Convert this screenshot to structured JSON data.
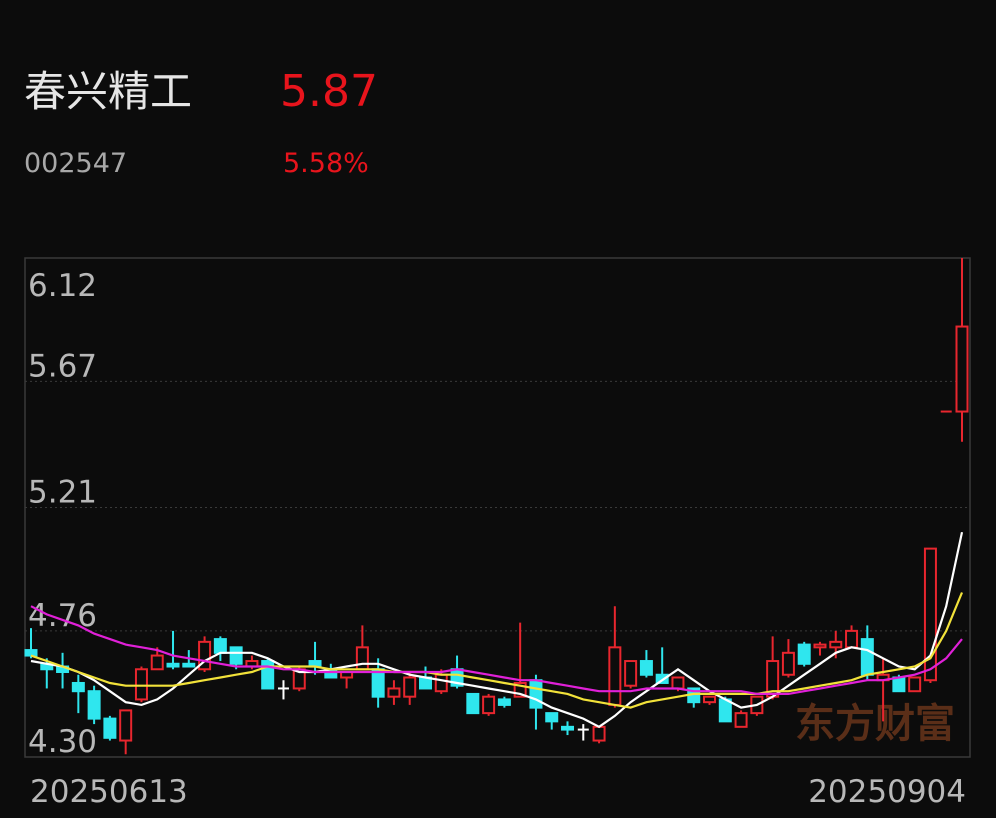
{
  "header": {
    "name": "春兴精工",
    "price": "5.87",
    "code": "002547",
    "change": "5.58%"
  },
  "watermark": "东方财富",
  "chart_data": {
    "type": "candlestick",
    "categories": [
      "20250613",
      null,
      null,
      null,
      null,
      null,
      null,
      null,
      null,
      null,
      null,
      null,
      null,
      null,
      null,
      null,
      null,
      null,
      null,
      null,
      null,
      null,
      null,
      null,
      null,
      null,
      null,
      null,
      null,
      null,
      null,
      null,
      null,
      null,
      null,
      null,
      null,
      null,
      null,
      null,
      null,
      null,
      null,
      null,
      null,
      null,
      null,
      null,
      null,
      null,
      null,
      null,
      null,
      null,
      null,
      null,
      null,
      null,
      null,
      "20250904"
    ],
    "open": [
      4.69,
      4.64,
      4.63,
      4.57,
      4.54,
      4.44,
      4.36,
      4.51,
      4.62,
      4.64,
      4.64,
      4.62,
      4.73,
      4.7,
      4.63,
      4.65,
      4.55,
      4.55,
      4.65,
      4.62,
      4.59,
      4.62,
      4.62,
      4.52,
      4.52,
      4.59,
      4.54,
      4.62,
      4.53,
      4.46,
      4.51,
      4.52,
      4.58,
      4.46,
      4.41,
      4.4,
      4.36,
      4.49,
      4.56,
      4.65,
      4.6,
      4.55,
      4.55,
      4.5,
      4.51,
      4.41,
      4.46,
      4.52,
      4.6,
      4.71,
      4.7,
      4.7,
      4.7,
      4.73,
      4.58,
      4.59,
      4.54,
      4.58,
      5.56,
      5.56
    ],
    "high": [
      4.77,
      4.66,
      4.68,
      4.6,
      4.56,
      4.45,
      4.47,
      4.63,
      4.7,
      4.76,
      4.69,
      4.74,
      4.74,
      4.7,
      4.67,
      4.66,
      4.58,
      4.63,
      4.72,
      4.64,
      4.61,
      4.78,
      4.66,
      4.58,
      4.61,
      4.63,
      4.62,
      4.67,
      4.53,
      4.53,
      4.52,
      4.79,
      4.6,
      4.46,
      4.43,
      4.42,
      4.41,
      4.85,
      4.65,
      4.69,
      4.7,
      4.59,
      4.55,
      4.52,
      4.52,
      4.47,
      4.52,
      4.74,
      4.73,
      4.72,
      4.72,
      4.76,
      4.78,
      4.78,
      4.66,
      4.6,
      4.59,
      5.06,
      5.56,
      6.12
    ],
    "low": [
      4.66,
      4.55,
      4.55,
      4.46,
      4.42,
      4.36,
      4.31,
      4.5,
      4.62,
      4.62,
      4.63,
      4.61,
      4.65,
      4.62,
      4.62,
      4.55,
      4.51,
      4.54,
      4.6,
      4.59,
      4.55,
      4.62,
      4.48,
      4.49,
      4.49,
      4.55,
      4.53,
      4.55,
      4.46,
      4.45,
      4.48,
      4.52,
      4.4,
      4.4,
      4.38,
      4.36,
      4.35,
      4.48,
      4.55,
      4.59,
      4.57,
      4.54,
      4.48,
      4.49,
      4.43,
      4.41,
      4.45,
      4.51,
      4.59,
      4.63,
      4.67,
      4.66,
      4.7,
      4.58,
      4.43,
      4.54,
      4.54,
      4.57,
      5.56,
      5.45
    ],
    "close": [
      4.67,
      4.62,
      4.61,
      4.54,
      4.44,
      4.37,
      4.47,
      4.62,
      4.67,
      4.63,
      4.63,
      4.72,
      4.68,
      4.64,
      4.65,
      4.55,
      4.55,
      4.62,
      4.63,
      4.59,
      4.61,
      4.7,
      4.52,
      4.55,
      4.59,
      4.55,
      4.6,
      4.56,
      4.46,
      4.52,
      4.49,
      4.57,
      4.48,
      4.43,
      4.4,
      4.4,
      4.41,
      4.7,
      4.65,
      4.6,
      4.57,
      4.59,
      4.5,
      4.52,
      4.43,
      4.46,
      4.52,
      4.65,
      4.68,
      4.64,
      4.71,
      4.72,
      4.76,
      4.6,
      4.6,
      4.54,
      4.59,
      5.06,
      5.56,
      5.87
    ],
    "up_color": "#e8262e",
    "down_color": "#2fe6ee",
    "flat_color": "#ffffff",
    "lines": [
      {
        "color": "#ffffff",
        "values": [
          4.65,
          4.64,
          4.63,
          4.61,
          4.58,
          4.54,
          4.5,
          4.49,
          4.51,
          4.55,
          4.6,
          4.65,
          4.68,
          4.68,
          4.68,
          4.66,
          4.63,
          4.61,
          4.61,
          4.62,
          4.63,
          4.64,
          4.64,
          4.62,
          4.6,
          4.59,
          4.58,
          4.57,
          4.56,
          4.55,
          4.54,
          4.53,
          4.51,
          4.48,
          4.46,
          4.44,
          4.41,
          4.45,
          4.5,
          4.54,
          4.58,
          4.62,
          4.58,
          4.54,
          4.51,
          4.48,
          4.49,
          4.52,
          4.56,
          4.6,
          4.64,
          4.68,
          4.7,
          4.69,
          4.66,
          4.63,
          4.62,
          4.67,
          4.85,
          5.12
        ]
      },
      {
        "color": "#f2e23a",
        "values": [
          4.67,
          4.65,
          4.63,
          4.61,
          4.59,
          4.57,
          4.56,
          4.56,
          4.56,
          4.56,
          4.57,
          4.58,
          4.59,
          4.6,
          4.61,
          4.63,
          4.63,
          4.63,
          4.63,
          4.62,
          4.62,
          4.62,
          4.62,
          4.61,
          4.61,
          4.61,
          4.6,
          4.6,
          4.59,
          4.58,
          4.57,
          4.56,
          4.55,
          4.54,
          4.53,
          4.51,
          4.5,
          4.49,
          4.48,
          4.5,
          4.51,
          4.52,
          4.53,
          4.53,
          4.53,
          4.53,
          4.53,
          4.54,
          4.54,
          4.55,
          4.56,
          4.57,
          4.58,
          4.6,
          4.61,
          4.62,
          4.63,
          4.66,
          4.76,
          4.9
        ]
      },
      {
        "color": "#e020d8",
        "values": [
          4.85,
          4.82,
          4.8,
          4.78,
          4.75,
          4.73,
          4.71,
          4.7,
          4.69,
          4.67,
          4.66,
          4.65,
          4.64,
          4.63,
          4.63,
          4.63,
          4.62,
          4.62,
          4.61,
          4.61,
          4.61,
          4.61,
          4.61,
          4.61,
          4.61,
          4.61,
          4.61,
          4.62,
          4.61,
          4.6,
          4.59,
          4.58,
          4.58,
          4.57,
          4.56,
          4.55,
          4.54,
          4.54,
          4.54,
          4.55,
          4.55,
          4.55,
          4.54,
          4.54,
          4.54,
          4.54,
          4.53,
          4.53,
          4.53,
          4.54,
          4.55,
          4.56,
          4.57,
          4.58,
          4.58,
          4.59,
          4.6,
          4.62,
          4.66,
          4.73
        ]
      }
    ],
    "ylim": [
      4.3,
      6.12
    ],
    "yticks": [
      6.12,
      5.67,
      5.21,
      4.76,
      {
        "value": 4.3,
        "label": "4.30"
      }
    ],
    "grid": true
  }
}
